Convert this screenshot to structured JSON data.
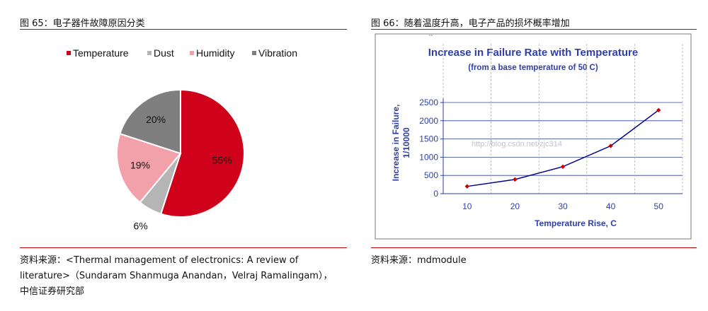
{
  "left_figure": {
    "caption": "图 65：电子器件故障原因分类",
    "source_line1": "资料来源：<Thermal management of electronics: A review of",
    "source_line2": "literature>（Sundaram Shanmuga Anandan，Velraj Ramalingam），",
    "source_line3": "中信证券研究部"
  },
  "right_figure": {
    "caption": "图 66：随着温度升高，电子产品的损坏概率增加",
    "source": "资料来源：mdmodule",
    "watermark": "http://blog.csdn.net/zjc314"
  },
  "chart_data": [
    {
      "type": "pie",
      "title": "",
      "legend_position": "top",
      "categories": [
        "Temperature",
        "Dust",
        "Humidity",
        "Vibration"
      ],
      "values": [
        55,
        6,
        19,
        20
      ],
      "labels": [
        "55%",
        "6%",
        "19%",
        "20%"
      ],
      "colors": [
        "#d0021b",
        "#b5b5b5",
        "#f2a1aa",
        "#7f7f7f"
      ]
    },
    {
      "type": "line",
      "title": "Increase in Failure Rate with Temperature",
      "subtitle": "(from a base temperature of 50 C)",
      "xlabel": "Temperature Rise, C",
      "ylabel": "Increase in Failure, 1/10000",
      "x": [
        10,
        20,
        30,
        40,
        50
      ],
      "series": [
        {
          "values": [
            200,
            390,
            740,
            1310,
            2290
          ]
        }
      ],
      "xlim": [
        5,
        55
      ],
      "ylim": [
        0,
        2500
      ],
      "xticks": [
        "10",
        "20",
        "30",
        "40",
        "50"
      ],
      "yticks": [
        "0",
        "500",
        "1000",
        "1500",
        "2000",
        "2500"
      ],
      "grid": true,
      "line_color": "#00008b",
      "marker_color": "#cc0000",
      "text_color": "#2f3fa8"
    }
  ]
}
